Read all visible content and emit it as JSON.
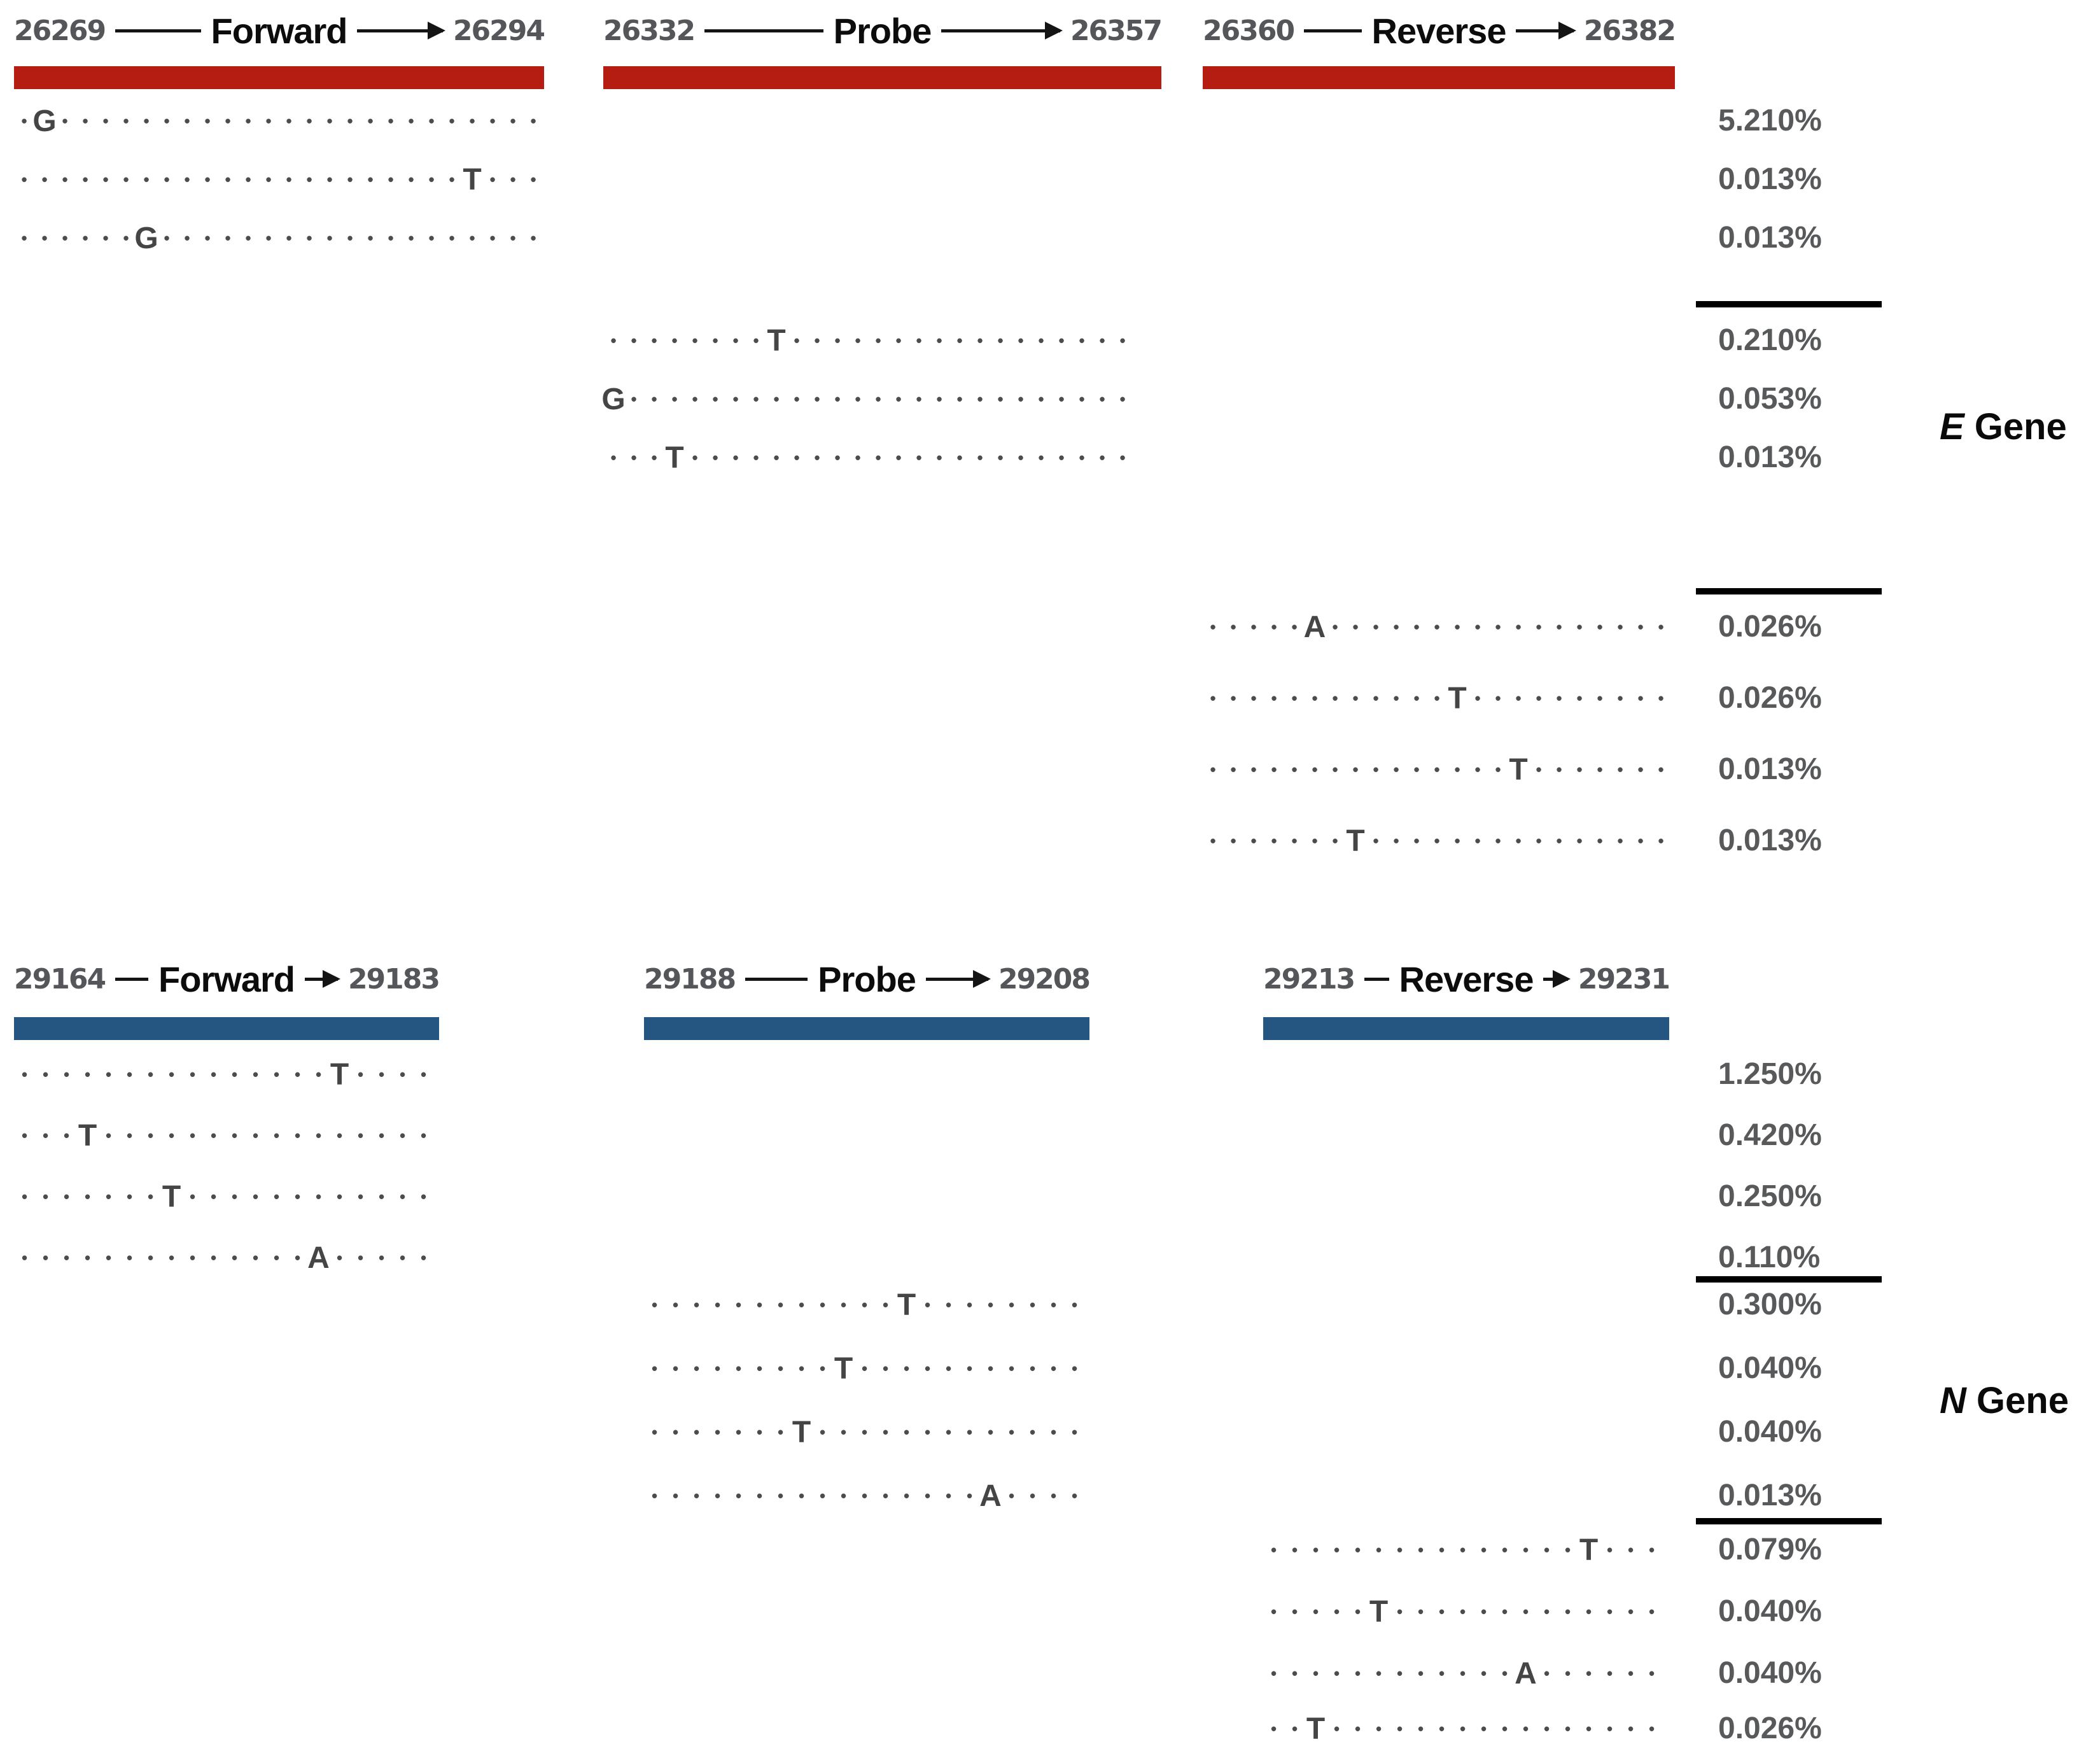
{
  "figure": {
    "legend_match_symbol": ".",
    "genes": [
      {
        "name": "E Gene",
        "label_gene": "E",
        "label_suffix": "Gene",
        "bar_color": "#b51c12",
        "primers": [
          {
            "name": "Forward",
            "start": "26269",
            "end": "26294",
            "variants": [
              {
                "seq": ".G........................",
                "freq": "5.210%"
              },
              {
                "seq": "......................T...",
                "freq": "0.013%"
              },
              {
                "seq": "......G...................",
                "freq": "0.013%"
              }
            ]
          },
          {
            "name": "Probe",
            "start": "26332",
            "end": "26357",
            "variants": [
              {
                "seq": "........T.................",
                "freq": "0.210%"
              },
              {
                "seq": "G.........................",
                "freq": "0.053%"
              },
              {
                "seq": "...T......................",
                "freq": "0.013%"
              }
            ]
          },
          {
            "name": "Reverse",
            "start": "26360",
            "end": "26382",
            "variants": [
              {
                "seq": ".....A.................",
                "freq": "0.026%"
              },
              {
                "seq": "............T..........",
                "freq": "0.026%"
              },
              {
                "seq": "...............T.......",
                "freq": "0.013%"
              },
              {
                "seq": ".......T...............",
                "freq": "0.013%"
              }
            ]
          }
        ]
      },
      {
        "name": "N Gene",
        "label_gene": "N",
        "label_suffix": "Gene",
        "bar_color": "#255682",
        "primers": [
          {
            "name": "Forward",
            "start": "29164",
            "end": "29183",
            "variants": [
              {
                "seq": "...............T....",
                "freq": "1.250%"
              },
              {
                "seq": "...T................",
                "freq": "0.420%"
              },
              {
                "seq": ".......T............",
                "freq": "0.250%"
              },
              {
                "seq": "..............A.....",
                "freq": "0.110%"
              }
            ]
          },
          {
            "name": "Probe",
            "start": "29188",
            "end": "29208",
            "variants": [
              {
                "seq": "............T........",
                "freq": "0.300%"
              },
              {
                "seq": ".........T...........",
                "freq": "0.040%"
              },
              {
                "seq": ".......T.............",
                "freq": "0.040%"
              },
              {
                "seq": "................A....",
                "freq": "0.013%"
              }
            ]
          },
          {
            "name": "Reverse",
            "start": "29213",
            "end": "29231",
            "variants": [
              {
                "seq": "...............T...",
                "freq": "0.079%"
              },
              {
                "seq": ".....T.............",
                "freq": "0.040%"
              },
              {
                "seq": "............A......",
                "freq": "0.040%"
              },
              {
                "seq": "..T................",
                "freq": "0.026%"
              }
            ]
          }
        ]
      }
    ]
  }
}
